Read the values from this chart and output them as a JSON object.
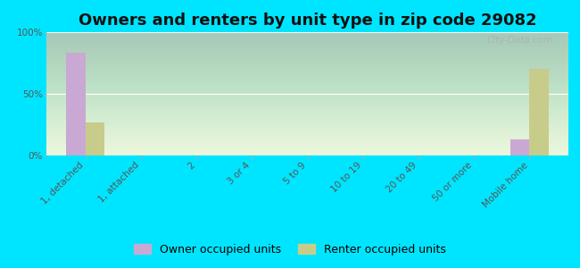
{
  "title": "Owners and renters by unit type in zip code 29082",
  "categories": [
    "1, detached",
    "1, attached",
    "2",
    "3 or 4",
    "5 to 9",
    "10 to 19",
    "20 to 49",
    "50 or more",
    "Mobile home"
  ],
  "owner_values": [
    83,
    0,
    0,
    0,
    0,
    0,
    0,
    0,
    13
  ],
  "renter_values": [
    27,
    0,
    0,
    0,
    0,
    0,
    0,
    0,
    70
  ],
  "owner_color": "#c9a8d4",
  "renter_color": "#c8cc8a",
  "background_color": "#00e5ff",
  "ylabel_ticks": [
    "0%",
    "50%",
    "100%"
  ],
  "ytick_values": [
    0,
    50,
    100
  ],
  "ylim": [
    0,
    100
  ],
  "bar_width": 0.35,
  "legend_owner": "Owner occupied units",
  "legend_renter": "Renter occupied units",
  "watermark": "City-Data.com",
  "title_fontsize": 13,
  "tick_fontsize": 7.5,
  "legend_fontsize": 9,
  "xlim_left": -0.7,
  "xlim_right": 8.7
}
